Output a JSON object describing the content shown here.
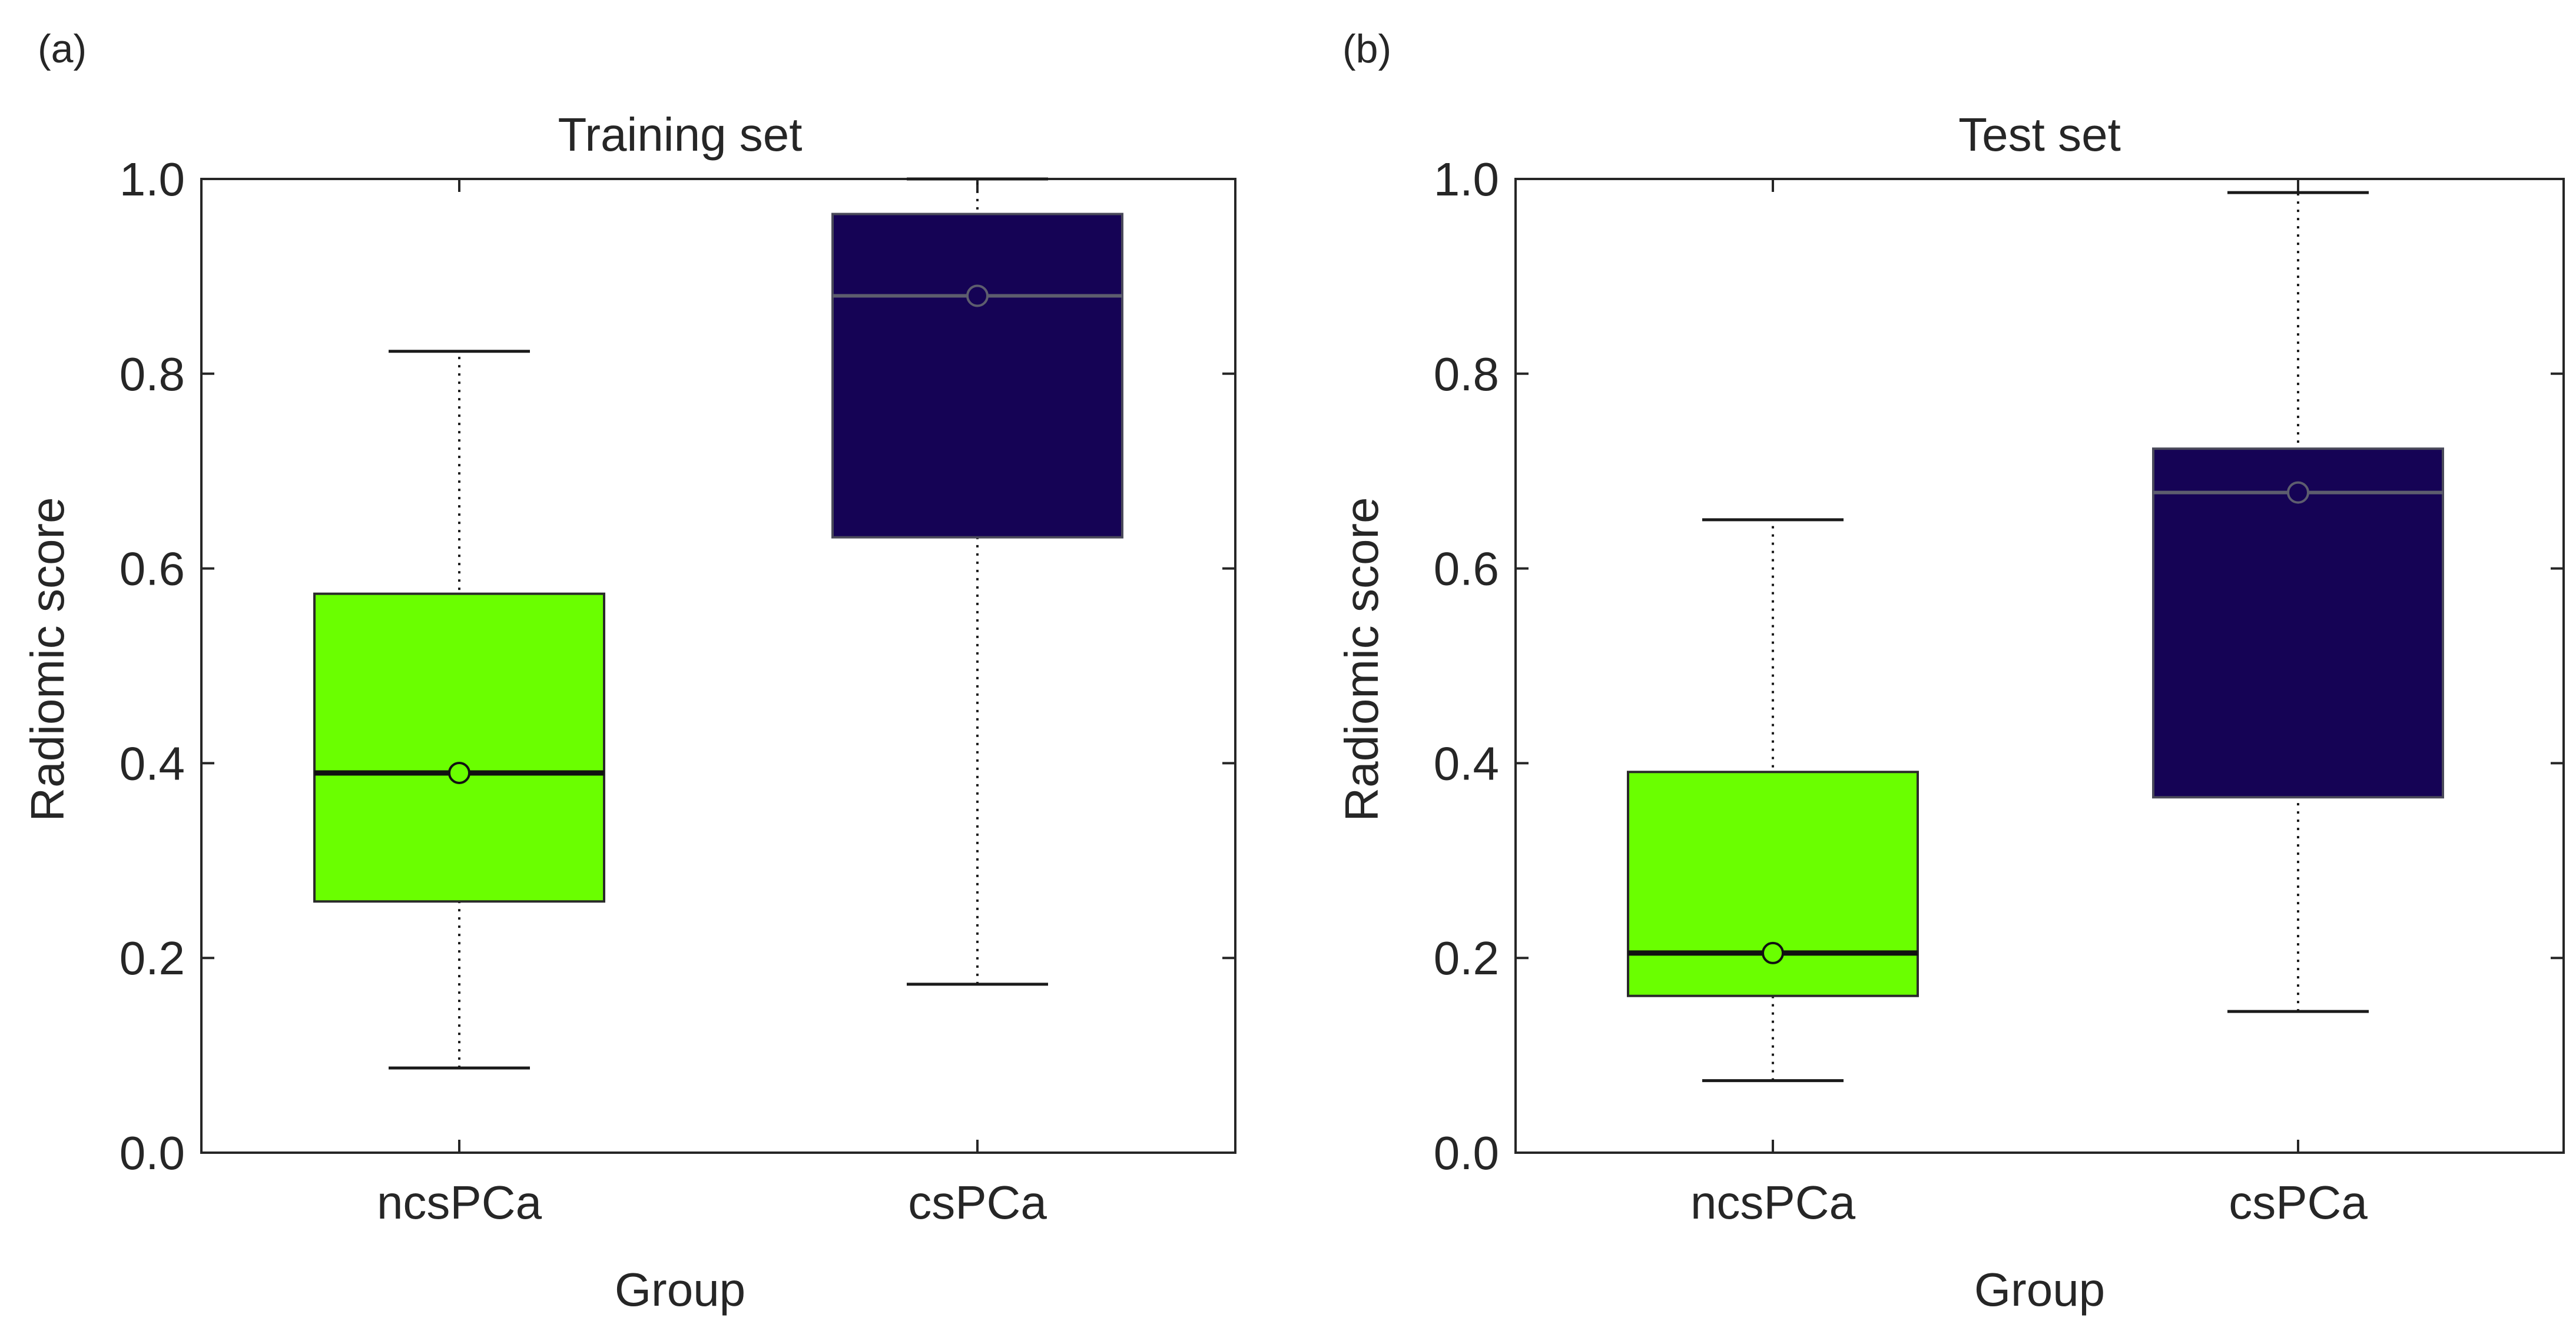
{
  "panels": [
    {
      "letter": "(a)"
    },
    {
      "letter": "(b)"
    }
  ],
  "chart_data": [
    {
      "type": "box",
      "title": "Training set",
      "xlabel": "Group",
      "ylabel": "Radiomic score",
      "ylim": [
        0,
        1.0
      ],
      "yticks": [
        "0.0",
        "0.2",
        "0.4",
        "0.6",
        "0.8",
        "1.0"
      ],
      "categories": [
        "ncsPCa",
        "csPCa"
      ],
      "series": [
        {
          "group": "ncsPCa",
          "whisker_low": 0.087,
          "q1": 0.258,
          "median": 0.39,
          "mean": 0.39,
          "q3": 0.574,
          "whisker_high": 0.823,
          "color": "#6aff00"
        },
        {
          "group": "csPCa",
          "whisker_low": 0.173,
          "q1": 0.632,
          "median": 0.88,
          "mean": 0.88,
          "q3": 0.964,
          "whisker_high": 1.0,
          "color": "#150355"
        }
      ],
      "grid": false
    },
    {
      "type": "box",
      "title": "Test set",
      "xlabel": "Group",
      "ylabel": "Radiomic score",
      "ylim": [
        0,
        1.0
      ],
      "yticks": [
        "0.0",
        "0.2",
        "0.4",
        "0.6",
        "0.8",
        "1.0"
      ],
      "categories": [
        "ncsPCa",
        "csPCa"
      ],
      "series": [
        {
          "group": "ncsPCa",
          "whisker_low": 0.074,
          "q1": 0.161,
          "median": 0.205,
          "mean": 0.205,
          "q3": 0.391,
          "whisker_high": 0.65,
          "color": "#6aff00"
        },
        {
          "group": "csPCa",
          "whisker_low": 0.145,
          "q1": 0.365,
          "median": 0.678,
          "mean": 0.678,
          "q3": 0.723,
          "whisker_high": 0.986,
          "color": "#150355"
        }
      ],
      "grid": false
    }
  ]
}
